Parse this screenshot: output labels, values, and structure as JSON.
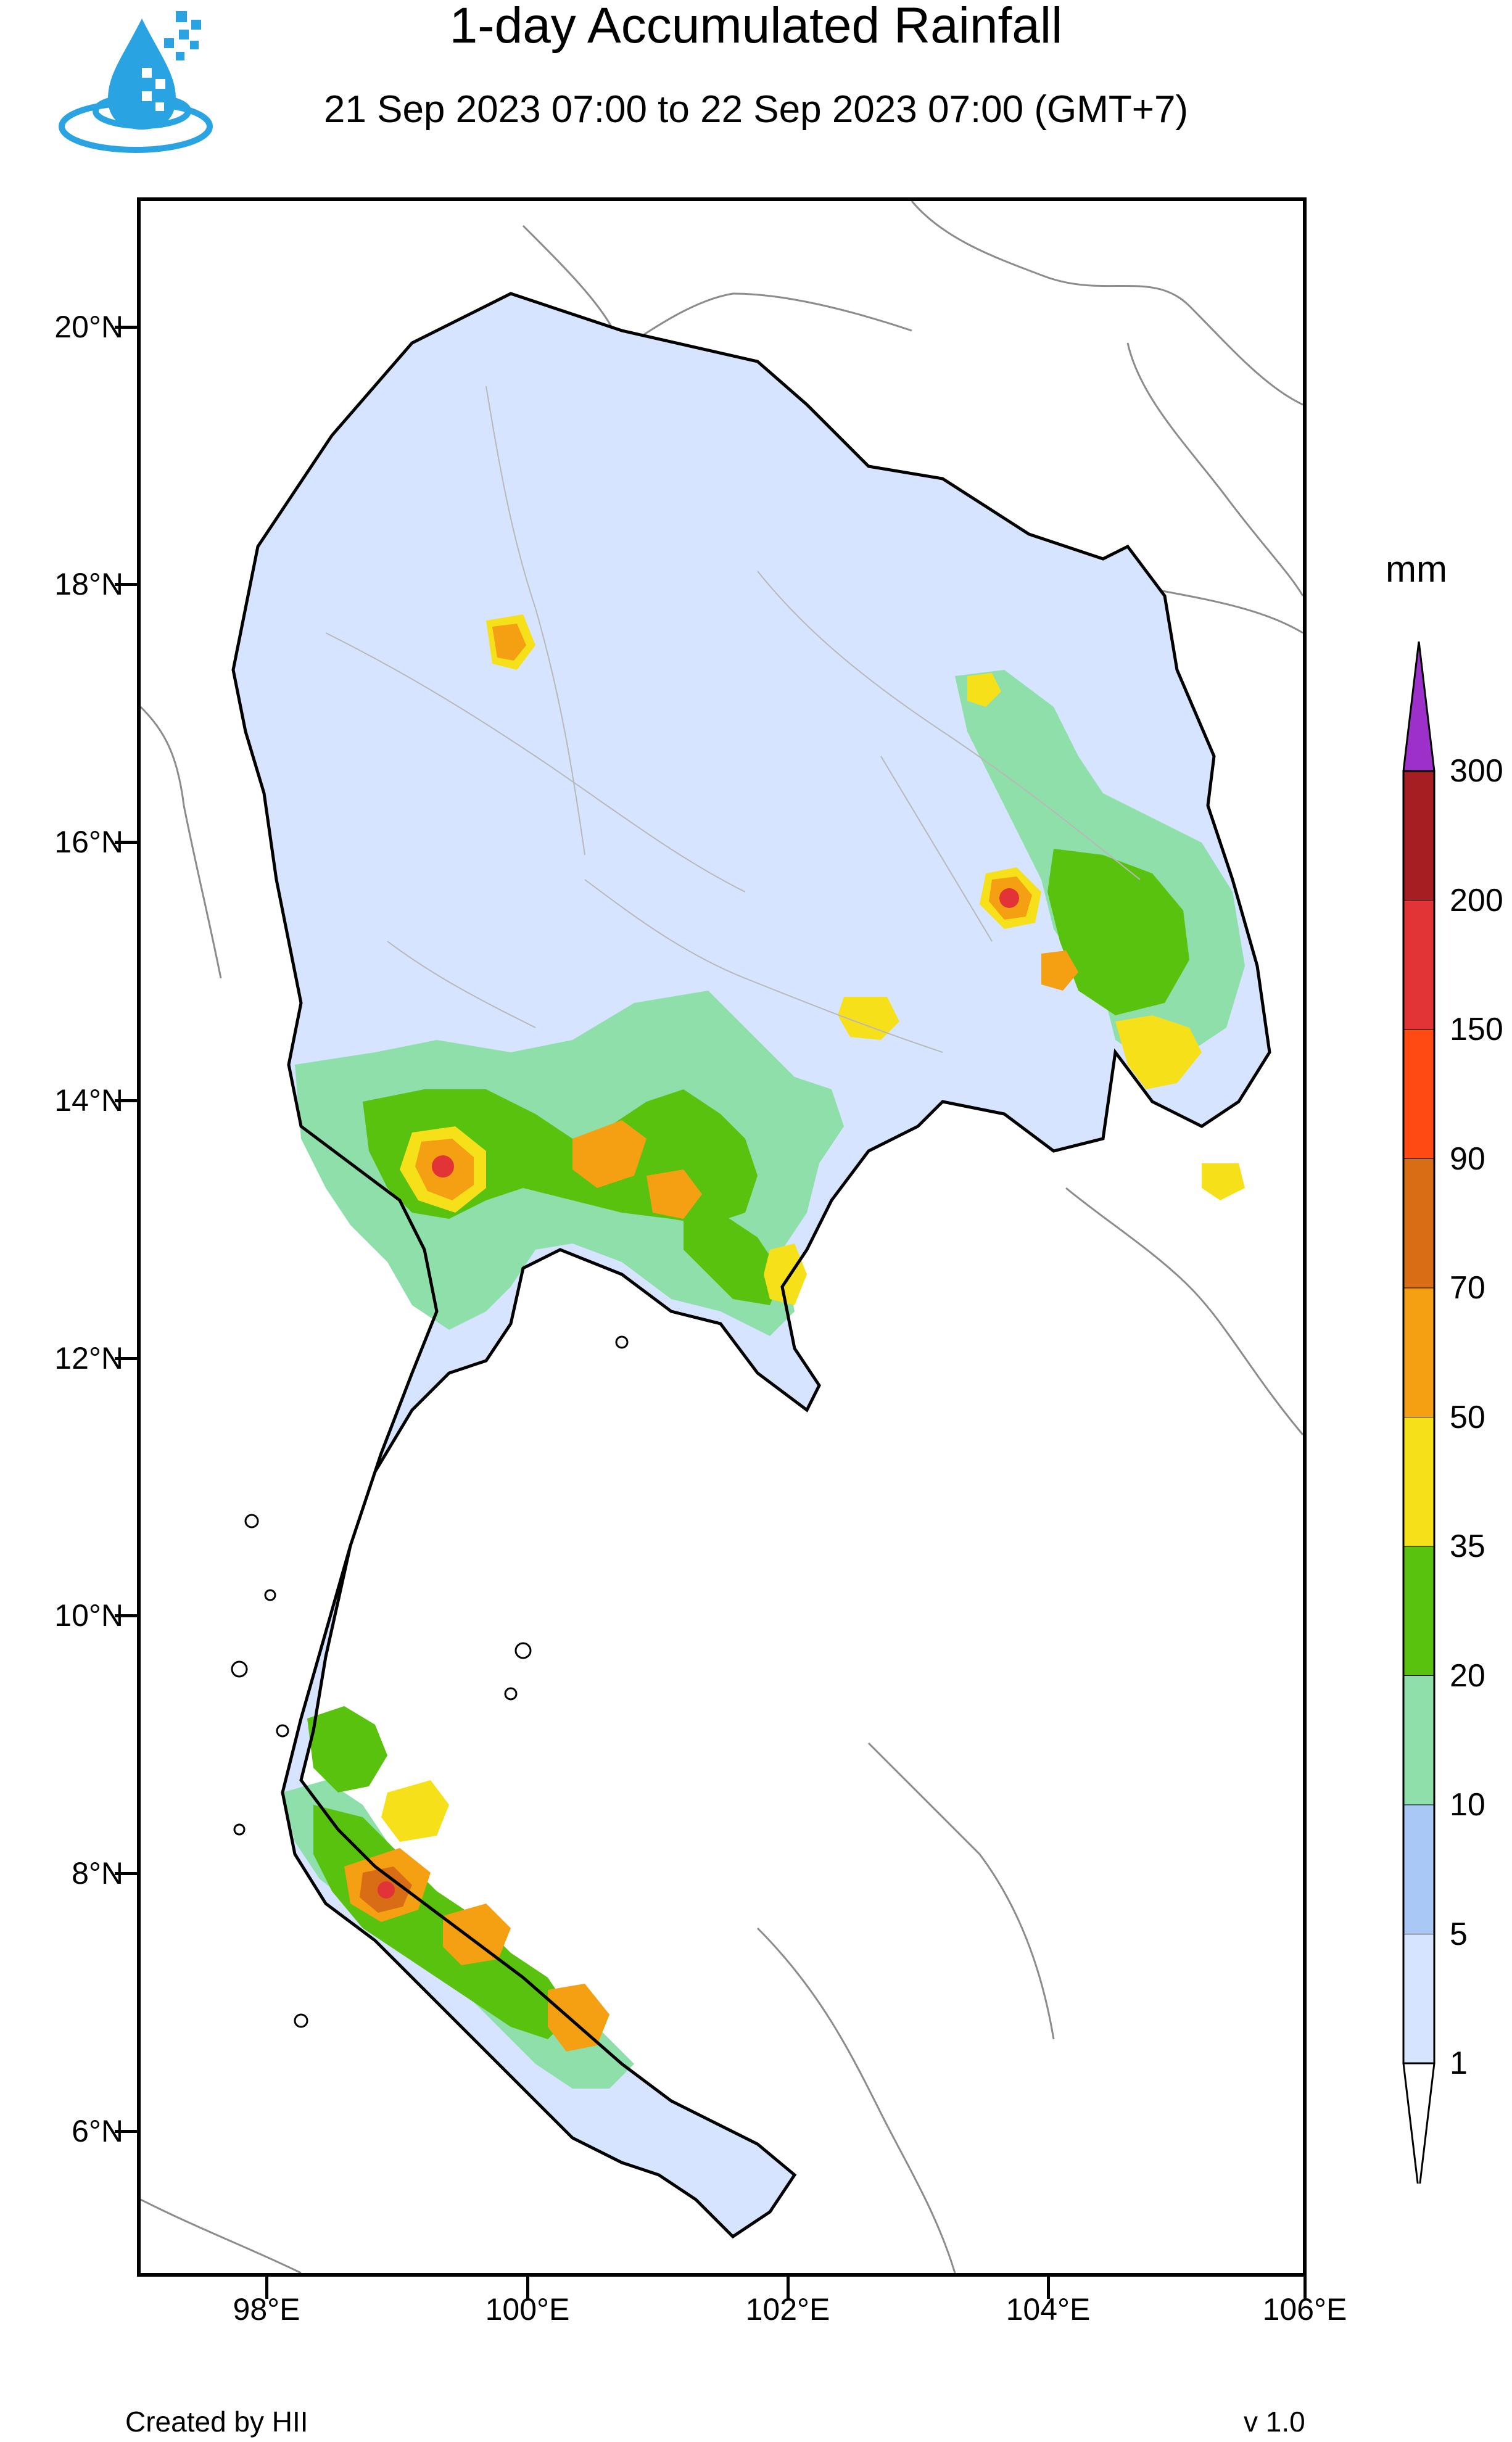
{
  "title": "1-day Accumulated Rainfall",
  "subtitle": "21 Sep 2023 07:00 to 22 Sep 2023 07:00 (GMT+7)",
  "logo_icon": "water-drop-logo-icon",
  "latitude_labels": [
    "20°N",
    "18°N",
    "16°N",
    "14°N",
    "12°N",
    "10°N",
    "8°N",
    "6°N"
  ],
  "longitude_labels": [
    "98°E",
    "100°E",
    "102°E",
    "104°E",
    "106°E"
  ],
  "legend": {
    "unit": "mm",
    "levels": [
      "1",
      "5",
      "10",
      "20",
      "35",
      "50",
      "70",
      "90",
      "150",
      "200",
      "300"
    ],
    "colors": [
      "#ffffff",
      "#d6e4ff",
      "#a9c8f6",
      "#8fdfaa",
      "#59c20e",
      "#f6e01a",
      "#f5a012",
      "#d86d16",
      "#ff4a12",
      "#e23336",
      "#a41e22",
      "#9c30c8"
    ]
  },
  "footer": {
    "credit": "Created by HII",
    "version": "v 1.0"
  }
}
